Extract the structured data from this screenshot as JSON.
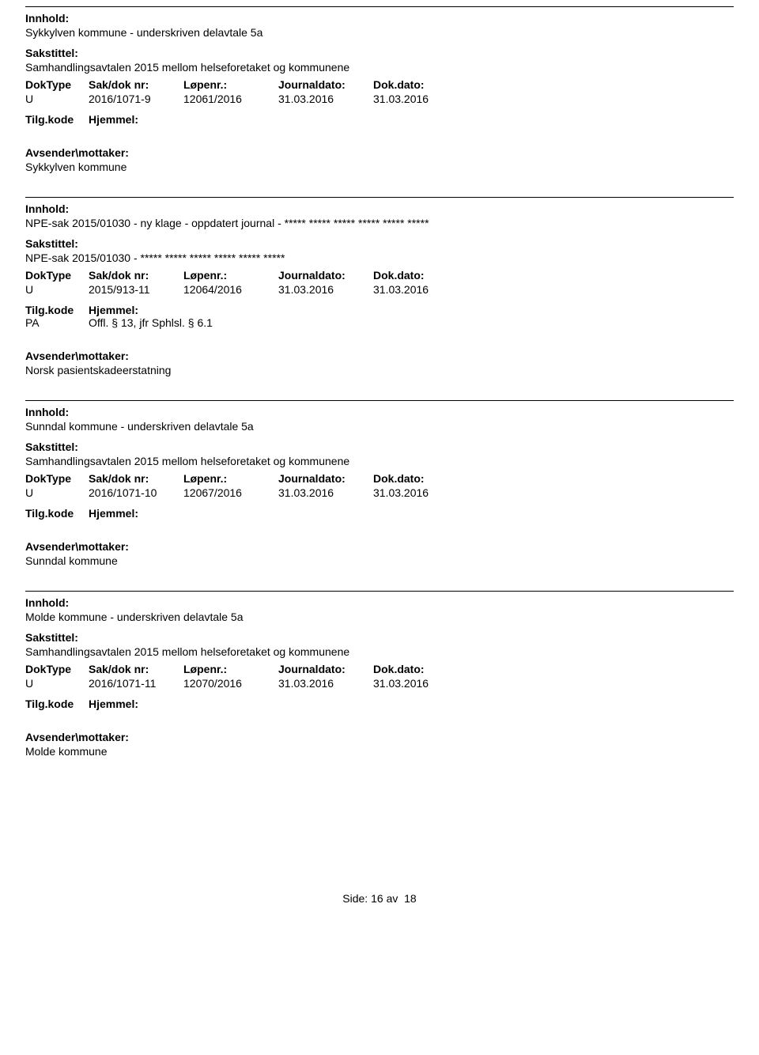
{
  "labels": {
    "innhold": "Innhold:",
    "sakstittel": "Sakstittel:",
    "doktype": "DokType",
    "sakdoknr": "Sak/dok nr:",
    "lopenr": "Løpenr.:",
    "journaldato": "Journaldato:",
    "dokdato": "Dok.dato:",
    "tilgkode": "Tilg.kode",
    "hjemmel": "Hjemmel:",
    "avsender": "Avsender\\mottaker:"
  },
  "records": [
    {
      "innhold": "Sykkylven kommune - underskriven delavtale 5a",
      "sakstittel": "Samhandlingsavtalen 2015 mellom helseforetaket og kommunene",
      "doktype": "U",
      "sakdoknr": "2016/1071-9",
      "lopenr": "12061/2016",
      "journaldato": "31.03.2016",
      "dokdato": "31.03.2016",
      "tilgkode": "",
      "hjemmel": "",
      "avsender": "Sykkylven kommune"
    },
    {
      "innhold": "NPE-sak 2015/01030 - ny klage - oppdatert journal -  ***** ***** ***** ***** ***** *****",
      "sakstittel": "NPE-sak 2015/01030 - ***** ***** ***** ***** ***** *****",
      "doktype": "U",
      "sakdoknr": "2015/913-11",
      "lopenr": "12064/2016",
      "journaldato": "31.03.2016",
      "dokdato": "31.03.2016",
      "tilgkode": "PA",
      "hjemmel": "Offl. § 13, jfr Sphlsl. § 6.1",
      "avsender": "Norsk pasientskadeerstatning"
    },
    {
      "innhold": "Sunndal kommune - underskriven delavtale 5a",
      "sakstittel": "Samhandlingsavtalen 2015 mellom helseforetaket og kommunene",
      "doktype": "U",
      "sakdoknr": "2016/1071-10",
      "lopenr": "12067/2016",
      "journaldato": "31.03.2016",
      "dokdato": "31.03.2016",
      "tilgkode": "",
      "hjemmel": "",
      "avsender": "Sunndal kommune"
    },
    {
      "innhold": "Molde kommune - underskriven delavtale 5a",
      "sakstittel": "Samhandlingsavtalen 2015 mellom helseforetaket og kommunene",
      "doktype": "U",
      "sakdoknr": "2016/1071-11",
      "lopenr": "12070/2016",
      "journaldato": "31.03.2016",
      "dokdato": "31.03.2016",
      "tilgkode": "",
      "hjemmel": "",
      "avsender": "Molde kommune"
    }
  ],
  "footer": {
    "side": "Side:",
    "page": "16",
    "av": "av",
    "total": "18"
  }
}
